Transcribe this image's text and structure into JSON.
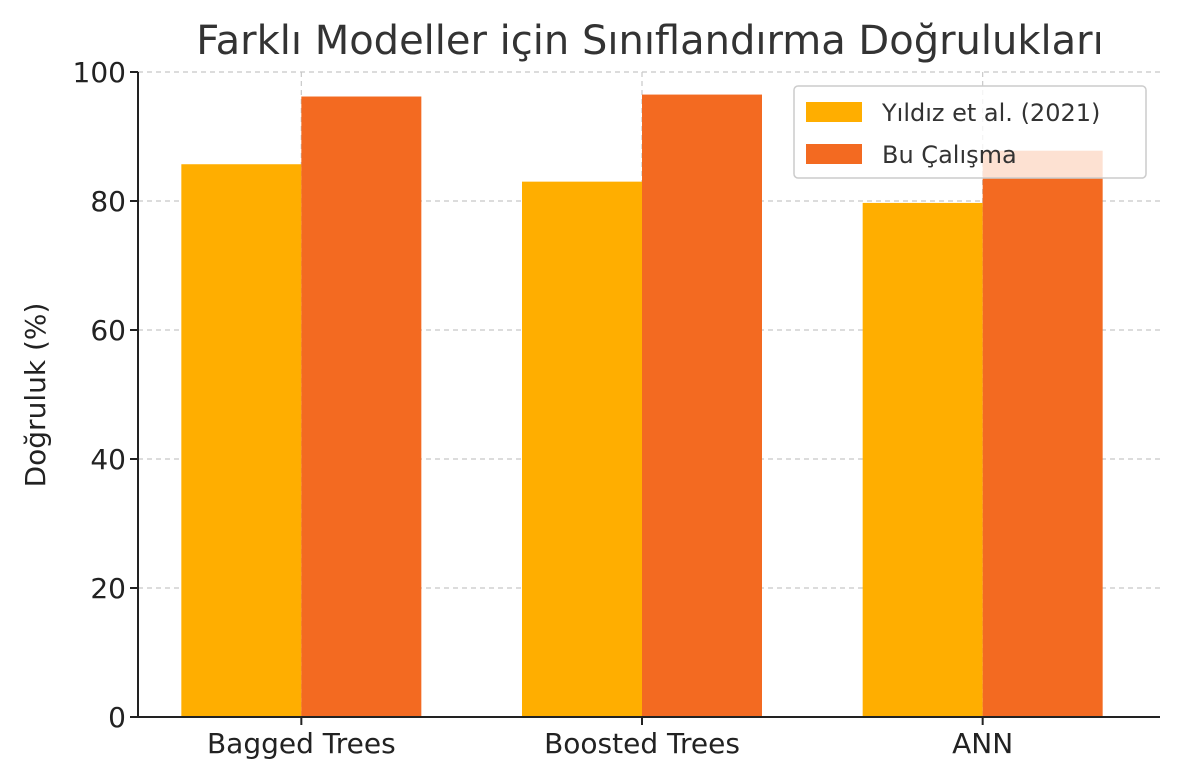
{
  "chart_data": {
    "type": "bar",
    "title": "Farklı Modeller için Sınıflandırma Doğrulukları",
    "xlabel": "",
    "ylabel": "Doğruluk (%)",
    "ylim": [
      0,
      100
    ],
    "yticks": [
      0,
      20,
      40,
      60,
      80,
      100
    ],
    "categories": [
      "Bagged Trees",
      "Boosted Trees",
      "ANN"
    ],
    "series": [
      {
        "name": "Yıldız et al. (2021)",
        "color": "#FFAE00",
        "values": [
          85.7,
          83.0,
          79.7
        ]
      },
      {
        "name": "Bu Çalışma",
        "color": "#F36A21",
        "values": [
          96.2,
          96.5,
          87.8
        ]
      }
    ],
    "grid": true,
    "legend_position": "top-right"
  }
}
